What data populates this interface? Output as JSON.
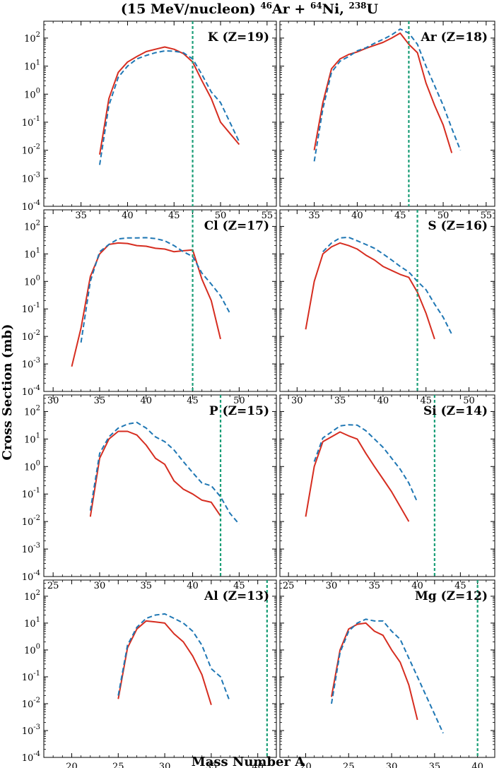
{
  "figure": {
    "title_prefix": "(15 MeV/nucleon) ",
    "title_parts": [
      {
        "sup": "46",
        "text": "Ar + "
      },
      {
        "sup": "64",
        "text": "Ni, "
      },
      {
        "sup": "238",
        "text": "U"
      }
    ],
    "xlabel": "Mass Number A",
    "ylabel": "Cross Section (mb)",
    "yticks": [
      {
        "base": "10",
        "exp": "2"
      },
      {
        "base": "10",
        "exp": "1"
      },
      {
        "base": "10",
        "exp": "0"
      },
      {
        "base": "10",
        "exp": "-1"
      },
      {
        "base": "10",
        "exp": "-2"
      },
      {
        "base": "10",
        "exp": "-3"
      },
      {
        "base": "10",
        "exp": "-4"
      }
    ],
    "colors": {
      "solid": "#d62d20",
      "dashed": "#1f77b4",
      "vline": "#1a9e77"
    }
  },
  "chart_data": [
    {
      "type": "line",
      "label": "K (Z=19)",
      "yscale": "log",
      "ylim": [
        0.0001,
        400
      ],
      "xlim": [
        31,
        56
      ],
      "xticks": [
        35,
        40,
        45,
        50,
        55
      ],
      "vline": 47,
      "series": [
        {
          "style": "solid",
          "x": [
            37,
            38,
            39,
            40,
            41,
            42,
            43,
            44,
            45,
            46,
            47,
            48,
            49,
            50,
            51,
            52
          ],
          "y": [
            0.007,
            0.7,
            6,
            14,
            22,
            33,
            40,
            48,
            40,
            28,
            14,
            3,
            0.7,
            0.1,
            0.04,
            0.016
          ]
        },
        {
          "style": "dashed",
          "x": [
            37,
            38,
            39,
            40,
            41,
            42,
            43,
            44,
            45,
            46,
            47,
            48,
            49,
            50,
            51,
            52
          ],
          "y": [
            0.003,
            0.4,
            4,
            10,
            18,
            24,
            30,
            35,
            34,
            30,
            18,
            5,
            1.2,
            0.5,
            0.1,
            0.02
          ]
        }
      ]
    },
    {
      "type": "line",
      "label": "Ar (Z=18)",
      "yscale": "log",
      "ylim": [
        0.0001,
        400
      ],
      "xlim": [
        31,
        56
      ],
      "xticks": [
        35,
        40,
        45,
        50,
        55
      ],
      "vline": 46,
      "series": [
        {
          "style": "solid",
          "x": [
            35,
            36,
            37,
            38,
            39,
            40,
            41,
            42,
            43,
            44,
            45,
            46,
            47,
            48,
            49,
            50,
            51
          ],
          "y": [
            0.01,
            0.5,
            8,
            18,
            26,
            32,
            43,
            55,
            70,
            100,
            150,
            60,
            30,
            2.5,
            0.4,
            0.08,
            0.008
          ]
        },
        {
          "style": "dashed",
          "x": [
            35,
            36,
            37,
            38,
            39,
            40,
            41,
            42,
            43,
            44,
            45,
            46,
            47,
            48,
            49,
            50,
            51,
            52
          ],
          "y": [
            0.004,
            0.3,
            6,
            15,
            22,
            35,
            45,
            65,
            90,
            130,
            210,
            150,
            60,
            10,
            2,
            0.4,
            0.06,
            0.01
          ]
        }
      ]
    },
    {
      "type": "line",
      "label": "Cl (Z=17)",
      "yscale": "log",
      "ylim": [
        0.0001,
        400
      ],
      "xlim": [
        29,
        54
      ],
      "xticks": [
        30,
        35,
        40,
        45,
        50
      ],
      "vline": 45,
      "series": [
        {
          "style": "solid",
          "x": [
            32,
            33,
            34,
            35,
            36,
            37,
            38,
            39,
            40,
            41,
            42,
            43,
            44,
            45,
            46,
            47,
            48
          ],
          "y": [
            0.0008,
            0.02,
            1.5,
            10,
            22,
            25,
            24,
            20,
            19,
            16,
            15,
            12,
            13,
            14,
            1.2,
            0.2,
            0.008
          ]
        },
        {
          "style": "dashed",
          "x": [
            33,
            34,
            35,
            36,
            37,
            38,
            39,
            40,
            41,
            42,
            43,
            44,
            45,
            46,
            47,
            48,
            49
          ],
          "y": [
            0.006,
            1,
            12,
            22,
            35,
            38,
            38,
            39,
            36,
            30,
            20,
            12,
            8,
            2,
            0.8,
            0.3,
            0.07
          ]
        }
      ]
    },
    {
      "type": "line",
      "label": "S (Z=16)",
      "yscale": "log",
      "ylim": [
        0.0001,
        400
      ],
      "xlim": [
        28,
        53
      ],
      "xticks": [
        30,
        35,
        40,
        45,
        50
      ],
      "vline": 44,
      "series": [
        {
          "style": "solid",
          "x": [
            31,
            32,
            33,
            34,
            35,
            36,
            37,
            38,
            39,
            40,
            41,
            42,
            43,
            44,
            45,
            46
          ],
          "y": [
            0.018,
            1,
            10,
            18,
            25,
            20,
            15,
            9,
            6,
            3.5,
            2.5,
            1.8,
            1.4,
            0.4,
            0.07,
            0.008
          ]
        },
        {
          "style": "dashed",
          "x": [
            33,
            34,
            35,
            36,
            37,
            38,
            39,
            40,
            41,
            42,
            43,
            44,
            45,
            46,
            47,
            48
          ],
          "y": [
            12,
            25,
            38,
            40,
            30,
            22,
            16,
            10,
            6,
            3.5,
            2.2,
            1,
            0.5,
            0.15,
            0.05,
            0.012
          ]
        }
      ]
    },
    {
      "type": "line",
      "label": "P (Z=15)",
      "yscale": "log",
      "ylim": [
        0.0001,
        400
      ],
      "xlim": [
        24,
        49
      ],
      "xticks": [
        25,
        30,
        35,
        40,
        45
      ],
      "vline": 43,
      "series": [
        {
          "style": "solid",
          "x": [
            29,
            30,
            31,
            32,
            33,
            34,
            35,
            36,
            37,
            38,
            39,
            40,
            41,
            42,
            43
          ],
          "y": [
            0.015,
            2,
            10,
            19,
            19,
            14,
            6,
            2,
            1.2,
            0.3,
            0.15,
            0.1,
            0.06,
            0.05,
            0.016
          ]
        },
        {
          "style": "dashed",
          "x": [
            29,
            30,
            31,
            32,
            33,
            34,
            35,
            36,
            37,
            38,
            39,
            40,
            41,
            42,
            43,
            44,
            45
          ],
          "y": [
            0.025,
            3,
            12,
            25,
            35,
            40,
            25,
            12,
            8,
            4,
            1.5,
            0.6,
            0.25,
            0.2,
            0.08,
            0.02,
            0.008
          ]
        }
      ]
    },
    {
      "type": "line",
      "label": "Si (Z=14)",
      "yscale": "log",
      "ylim": [
        0.0001,
        400
      ],
      "xlim": [
        24,
        49
      ],
      "xticks": [
        25,
        30,
        35,
        40,
        45
      ],
      "vline": 42,
      "series": [
        {
          "style": "solid",
          "x": [
            27,
            28,
            29,
            30,
            31,
            32,
            33,
            34,
            35,
            36,
            37,
            38,
            39
          ],
          "y": [
            0.015,
            1,
            8,
            12,
            18,
            13,
            10,
            3,
            1,
            0.35,
            0.12,
            0.035,
            0.01
          ]
        },
        {
          "style": "dashed",
          "x": [
            28,
            29,
            30,
            31,
            32,
            33,
            34,
            35,
            36,
            37,
            38,
            39,
            40
          ],
          "y": [
            1.5,
            11,
            18,
            30,
            33,
            32,
            20,
            10,
            5,
            2,
            0.8,
            0.25,
            0.05
          ]
        }
      ]
    },
    {
      "type": "line",
      "label": "Al (Z=13)",
      "yscale": "log",
      "ylim": [
        0.0001,
        400
      ],
      "xlim": [
        17,
        42
      ],
      "xticks": [
        20,
        25,
        30,
        35,
        40
      ],
      "vline": 41,
      "series": [
        {
          "style": "solid",
          "x": [
            25,
            26,
            27,
            28,
            29,
            30,
            31,
            32,
            33,
            34,
            35
          ],
          "y": [
            0.015,
            1.2,
            6,
            12,
            11,
            10,
            4,
            2,
            0.6,
            0.12,
            0.009
          ]
        },
        {
          "style": "dashed",
          "x": [
            25,
            26,
            27,
            28,
            29,
            30,
            31,
            32,
            33,
            34,
            35,
            36,
            37
          ],
          "y": [
            0.02,
            1.5,
            7,
            15,
            20,
            22,
            15,
            10,
            5,
            1.5,
            0.2,
            0.1,
            0.012
          ]
        }
      ]
    },
    {
      "type": "line",
      "label": "Mg (Z=12)",
      "yscale": "log",
      "ylim": [
        0.0001,
        400
      ],
      "xlim": [
        17,
        42
      ],
      "xticks": [
        20,
        25,
        30,
        35,
        40
      ],
      "vline": 40,
      "series": [
        {
          "style": "solid",
          "x": [
            23,
            24,
            25,
            26,
            27,
            28,
            29,
            30,
            31,
            32,
            33
          ],
          "y": [
            0.018,
            1,
            6,
            9,
            10,
            5,
            3.5,
            1,
            0.35,
            0.05,
            0.0025
          ]
        },
        {
          "style": "dashed",
          "x": [
            23,
            24,
            25,
            26,
            27,
            28,
            29,
            30,
            31,
            32,
            33,
            34,
            35,
            36
          ],
          "y": [
            0.01,
            0.8,
            5,
            10,
            14,
            12,
            12,
            5,
            2.5,
            0.5,
            0.1,
            0.02,
            0.004,
            0.0008
          ]
        }
      ]
    }
  ]
}
